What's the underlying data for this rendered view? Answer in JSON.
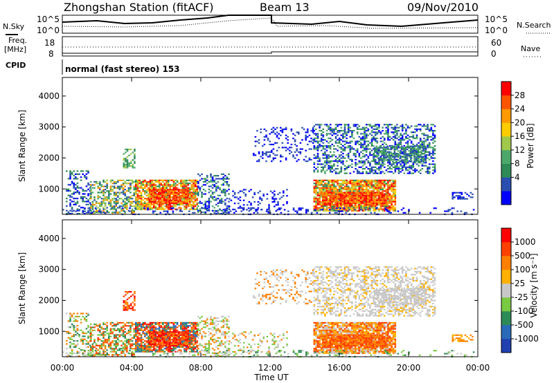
{
  "header": {
    "title": "Zhongshan Station (fitACF)",
    "beam": "Beam 13",
    "date": "09/Nov/2010"
  },
  "top_panels": {
    "nsky_label": "N.Sky",
    "nsearch_label": "N.Search",
    "noise_ticks": [
      "10^5",
      "10^0"
    ],
    "freq_label": "Freq.",
    "freq_unit": "[MHz]",
    "freq_ticks": [
      "18",
      "8"
    ],
    "nave_label": "Nave",
    "nave_ticks": [
      "60",
      "0"
    ],
    "cpid_label": "CPID",
    "cpid_value": "normal (fast stereo) 153"
  },
  "chart_data": [
    {
      "type": "heatmap",
      "title": "",
      "ylabel": "Slant Range [km]",
      "xlabel": "",
      "quantity": "Power",
      "colorbar_label": "Power [dB]",
      "colorbar_ticks": [
        "28",
        "24",
        "20",
        "16",
        "12",
        "8",
        "4"
      ],
      "colors": [
        "#0000ff",
        "#2a4fb0",
        "#2e8b57",
        "#4ca86a",
        "#a0c84a",
        "#ffcc00",
        "#ff9900",
        "#ff5500",
        "#ff0000"
      ],
      "x_ticks": [
        "00:00",
        "04:00",
        "08:00",
        "12:00",
        "16:00",
        "20:00",
        "00:00"
      ],
      "x_range_hours": [
        0,
        24
      ],
      "y_ticks": [
        1000,
        2000,
        3000,
        4000
      ],
      "ylim": [
        180,
        4600
      ]
    },
    {
      "type": "heatmap",
      "title": "",
      "ylabel": "Slant Range [km]",
      "xlabel": "Time UT",
      "quantity": "Velocity",
      "colorbar_label": "Velocity [m s⁻¹]",
      "colorbar_ticks": [
        "1000",
        "500",
        "100",
        "25",
        "-25",
        "-100",
        "-500",
        "-1000"
      ],
      "colors": [
        "#2040b0",
        "#2a6ab8",
        "#2e8b57",
        "#7ac943",
        "#c8c8c8",
        "#ffb000",
        "#ff8000",
        "#ff4000",
        "#ff0000"
      ],
      "x_ticks": [
        "00:00",
        "04:00",
        "08:00",
        "12:00",
        "16:00",
        "20:00",
        "00:00"
      ],
      "x_range_hours": [
        0,
        24
      ],
      "y_ticks": [
        1000,
        2000,
        3000,
        4000
      ],
      "ylim": [
        180,
        4600
      ]
    }
  ],
  "x_axis_label": "Time UT"
}
